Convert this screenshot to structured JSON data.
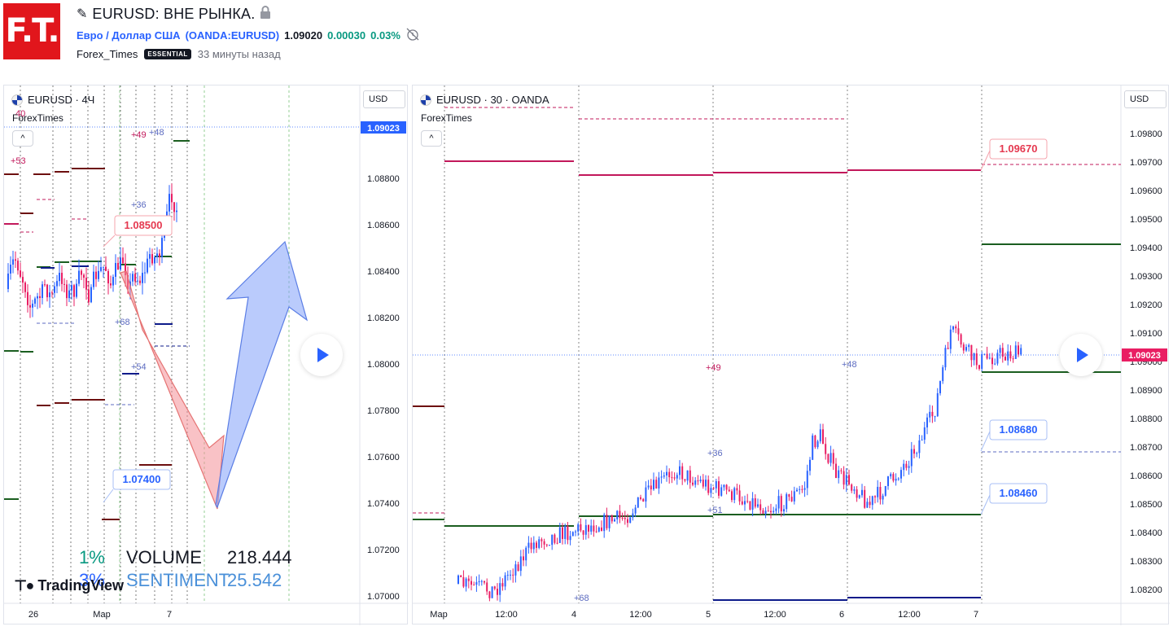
{
  "header": {
    "logo_text": "F.T.",
    "title": "EURUSD: ВНЕ РЫНКА.",
    "instrument_name": "Евро / Доллар США",
    "instrument_code": "(OANDA:EURUSD)",
    "price": "1.09020",
    "change": "0.00030",
    "change_pct": "0.03%",
    "author": "Forex_Times",
    "badge": "ESSENTIAL",
    "time_ago": "33 минуты назад"
  },
  "left_chart": {
    "symbol": "EURUSD · 4Ч",
    "source": "ForexTimes",
    "currency": "USD",
    "current_price": "1.09023",
    "price_scale": [
      "1.08800",
      "1.08600",
      "1.08400",
      "1.08200",
      "1.08000",
      "1.07800",
      "1.07600",
      "1.07400",
      "1.07200",
      "1.07000"
    ],
    "time_labels": [
      "26",
      "Мар",
      "7"
    ],
    "callouts": [
      "1.08500",
      "1.07400"
    ],
    "offset_labels": [
      "40",
      "+53",
      "+49",
      "+48",
      "+36",
      "+68",
      "+54"
    ],
    "stats": {
      "volume_pct": "1%",
      "volume_label": "VOLUME",
      "volume_value": "218.444",
      "sentiment_pct": "3%",
      "sentiment_label": "SENTIMENT",
      "sentiment_value": "25.542"
    },
    "watermark": "TradingView"
  },
  "right_chart": {
    "symbol": "EURUSD · 30 · OANDA",
    "source": "ForexTimes",
    "currency": "USD",
    "current_price": "1.09023",
    "price_scale": [
      "1.09800",
      "1.09700",
      "1.09600",
      "1.09500",
      "1.09400",
      "1.09300",
      "1.09200",
      "1.09100",
      "1.09000",
      "1.08900",
      "1.08800",
      "1.08700",
      "1.08600",
      "1.08500",
      "1.08400",
      "1.08300",
      "1.08200"
    ],
    "time_labels": [
      "Мар",
      "12:00",
      "4",
      "12:00",
      "5",
      "12:00",
      "6",
      "12:00",
      "7"
    ],
    "callouts": [
      "1.09670",
      "1.08680",
      "1.08460"
    ],
    "offset_labels": [
      "+49",
      "+48",
      "+36",
      "+51",
      "+68"
    ]
  },
  "colors": {
    "up": "#2962ff",
    "down": "#e91e63",
    "green_level": "#1b5e20",
    "magenta_level": "#c2185b",
    "price_tag": "#2962ff"
  }
}
